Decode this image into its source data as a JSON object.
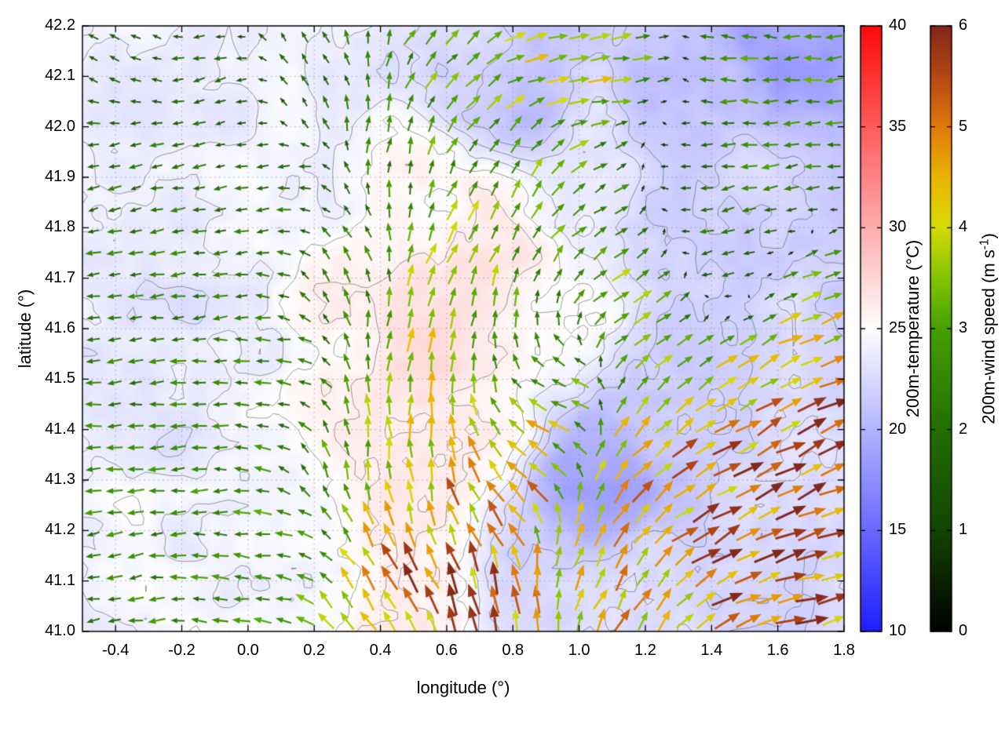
{
  "chart_data": {
    "type": "vector_field_map",
    "title": "",
    "xlabel": "longitude (°)",
    "ylabel": "latitude (°)",
    "xlim": [
      -0.5,
      1.8
    ],
    "ylim": [
      41.0,
      42.2
    ],
    "grid": "dotted",
    "xticks": {
      "values": [
        -0.4,
        -0.2,
        0.0,
        0.2,
        0.4,
        0.6,
        0.8,
        1.0,
        1.2,
        1.4,
        1.6,
        1.8
      ],
      "labels": [
        "-0.4",
        "-0.2",
        "0.0",
        "0.2",
        "0.4",
        "0.6",
        "0.8",
        "1.0",
        "1.2",
        "1.4",
        "1.6",
        "1.8"
      ]
    },
    "yticks": {
      "values": [
        41.0,
        41.1,
        41.2,
        41.3,
        41.4,
        41.5,
        41.6,
        41.7,
        41.8,
        41.9,
        42.0,
        42.1,
        42.2
      ],
      "labels": [
        "41.0",
        "41.1",
        "41.2",
        "41.3",
        "41.4",
        "41.5",
        "41.6",
        "41.7",
        "41.8",
        "41.9",
        "42.0",
        "42.1",
        "42.2"
      ]
    },
    "colorbars": [
      {
        "id": "temperature",
        "label": "200m-temperature (°C)",
        "range": [
          10,
          40
        ],
        "ticks": [
          10,
          15,
          20,
          25,
          30,
          35,
          40
        ],
        "tick_labels": [
          "10",
          "15",
          "20",
          "25",
          "30",
          "35",
          "40"
        ],
        "stops": [
          [
            0.0,
            "#1e1eff"
          ],
          [
            0.5,
            "#ffffff"
          ],
          [
            1.0,
            "#ff0a0a"
          ]
        ]
      },
      {
        "id": "wind",
        "label_prefix": "200m-wind speed (m s",
        "label_sup": "-1",
        "label_suffix": ")",
        "range": [
          0,
          6
        ],
        "ticks": [
          0,
          1,
          2,
          3,
          4,
          5,
          6
        ],
        "tick_labels": [
          "0",
          "1",
          "2",
          "3",
          "4",
          "5",
          "6"
        ],
        "stops": [
          [
            0.0,
            "#000000"
          ],
          [
            0.17,
            "#144600"
          ],
          [
            0.33,
            "#226e00"
          ],
          [
            0.5,
            "#46a000"
          ],
          [
            0.58,
            "#82c300"
          ],
          [
            0.67,
            "#d7dc00"
          ],
          [
            0.75,
            "#ebb400"
          ],
          [
            0.83,
            "#e17d0a"
          ],
          [
            0.92,
            "#b44614"
          ],
          [
            1.0,
            "#822819"
          ]
        ]
      }
    ],
    "contour_levels": [
      22,
      23,
      24,
      25,
      26
    ],
    "temperature_field": {
      "units": "°C",
      "points": [
        [
          -0.45,
          41.1,
          24.2
        ],
        [
          -0.45,
          41.5,
          23.8
        ],
        [
          -0.45,
          41.9,
          24.0
        ],
        [
          -0.45,
          42.15,
          23.9
        ],
        [
          -0.3,
          41.45,
          23.2
        ],
        [
          -0.1,
          41.6,
          23.3
        ],
        [
          -0.15,
          42.05,
          23.8
        ],
        [
          -0.2,
          41.15,
          24.3
        ],
        [
          0.05,
          41.3,
          24.8
        ],
        [
          0.1,
          41.9,
          24.6
        ],
        [
          0.0,
          42.15,
          23.9
        ],
        [
          0.3,
          41.6,
          25.8
        ],
        [
          0.35,
          42.1,
          23.4
        ],
        [
          0.5,
          41.9,
          25.4
        ],
        [
          0.55,
          41.6,
          27.4
        ],
        [
          0.5,
          41.25,
          26.9
        ],
        [
          0.45,
          41.05,
          26.2
        ],
        [
          0.7,
          41.45,
          26.2
        ],
        [
          0.75,
          41.8,
          26.3
        ],
        [
          0.8,
          42.05,
          20.6
        ],
        [
          0.65,
          42.15,
          22.4
        ],
        [
          1.0,
          41.9,
          23.4
        ],
        [
          0.95,
          41.6,
          25.0
        ],
        [
          1.05,
          41.3,
          18.6
        ],
        [
          0.9,
          41.1,
          22.2
        ],
        [
          1.25,
          41.45,
          21.2
        ],
        [
          1.2,
          41.05,
          23.4
        ],
        [
          1.5,
          41.1,
          22.2
        ],
        [
          1.6,
          41.35,
          22.6
        ],
        [
          1.55,
          41.65,
          22.2
        ],
        [
          1.45,
          41.9,
          22.4
        ],
        [
          1.35,
          42.05,
          21.0
        ],
        [
          1.65,
          42.15,
          18.4
        ],
        [
          1.78,
          41.9,
          21.5
        ],
        [
          1.78,
          41.45,
          22.8
        ],
        [
          0.2,
          41.1,
          24.6
        ]
      ]
    },
    "wind_field": {
      "units": "m s-1",
      "arrow_grid": {
        "nx": 36,
        "ny": 28
      },
      "points": [
        [
          -0.45,
          41.1,
          190,
          2.4
        ],
        [
          -0.45,
          41.5,
          185,
          2.4
        ],
        [
          -0.45,
          41.9,
          195,
          2.0
        ],
        [
          -0.4,
          42.15,
          150,
          1.6
        ],
        [
          -0.2,
          41.3,
          185,
          2.6
        ],
        [
          -0.2,
          41.7,
          190,
          2.2
        ],
        [
          -0.1,
          42.05,
          200,
          1.8
        ],
        [
          0.1,
          41.5,
          180,
          2.7
        ],
        [
          0.05,
          41.15,
          175,
          2.6
        ],
        [
          0.1,
          41.85,
          195,
          2.2
        ],
        [
          0.2,
          42.1,
          120,
          2.0
        ],
        [
          0.45,
          42.0,
          80,
          2.8
        ],
        [
          0.3,
          41.75,
          120,
          2.5
        ],
        [
          0.35,
          41.4,
          95,
          3.2
        ],
        [
          0.5,
          41.55,
          75,
          3.9
        ],
        [
          0.62,
          41.72,
          65,
          3.6
        ],
        [
          0.55,
          41.35,
          95,
          4.6
        ],
        [
          0.55,
          41.12,
          115,
          5.4
        ],
        [
          0.75,
          41.05,
          100,
          5.0
        ],
        [
          0.42,
          41.05,
          125,
          4.6
        ],
        [
          0.8,
          41.3,
          135,
          5.2
        ],
        [
          0.9,
          41.45,
          175,
          4.5
        ],
        [
          0.75,
          41.55,
          80,
          3.4
        ],
        [
          0.8,
          41.9,
          60,
          3.0
        ],
        [
          0.65,
          42.1,
          45,
          3.2
        ],
        [
          0.9,
          42.15,
          10,
          4.0
        ],
        [
          1.15,
          42.1,
          5,
          4.2
        ],
        [
          1.05,
          41.9,
          30,
          3.4
        ],
        [
          1.2,
          41.65,
          35,
          3.8
        ],
        [
          1.05,
          41.15,
          60,
          4.4
        ],
        [
          1.2,
          41.35,
          45,
          5.0
        ],
        [
          1.45,
          41.25,
          30,
          5.2
        ],
        [
          1.7,
          41.1,
          15,
          5.4
        ],
        [
          1.78,
          41.35,
          25,
          5.6
        ],
        [
          1.55,
          41.5,
          30,
          4.6
        ],
        [
          1.7,
          41.65,
          20,
          4.0
        ],
        [
          1.45,
          41.75,
          200,
          3.0
        ],
        [
          1.6,
          41.9,
          190,
          2.6
        ],
        [
          1.3,
          41.95,
          185,
          2.4
        ],
        [
          1.78,
          42.1,
          185,
          2.8
        ],
        [
          1.45,
          42.15,
          175,
          3.0
        ]
      ]
    }
  }
}
